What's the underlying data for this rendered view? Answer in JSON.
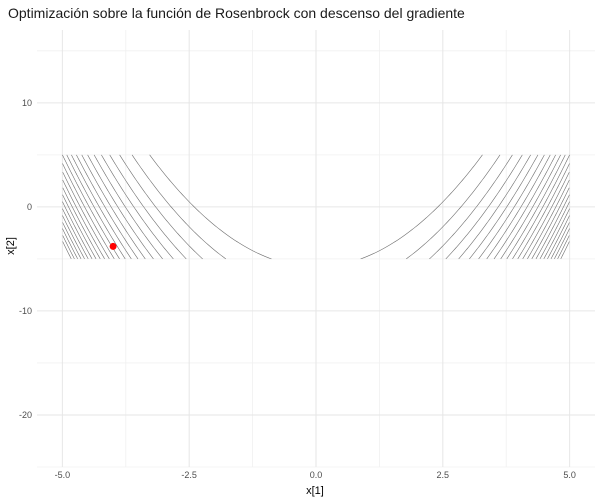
{
  "chart_data": {
    "type": "contour",
    "title": "Optimización sobre la función de Rosenbrock con descenso del gradiente",
    "xlabel": "x[1]",
    "ylabel": "x[2]",
    "xlim": [
      -5.5,
      5.5
    ],
    "ylim": [
      -25,
      17
    ],
    "x_ticks": [
      -5.0,
      -2.5,
      0.0,
      2.5,
      5.0
    ],
    "x_tick_labels": [
      "-5.0",
      "-2.5",
      "0.0",
      "2.5",
      "5.0"
    ],
    "y_ticks": [
      -20,
      -10,
      0,
      10
    ],
    "y_tick_labels": [
      "-20",
      "-10",
      "0",
      "10"
    ],
    "grid": true,
    "contour": {
      "function": "rosenbrock",
      "x_range": [
        -5,
        5
      ],
      "y_range": [
        -5,
        5
      ],
      "line_color": "#6e6e6e"
    },
    "points": [
      {
        "x": -4.0,
        "y": -3.8,
        "color": "#ff0000"
      }
    ]
  }
}
